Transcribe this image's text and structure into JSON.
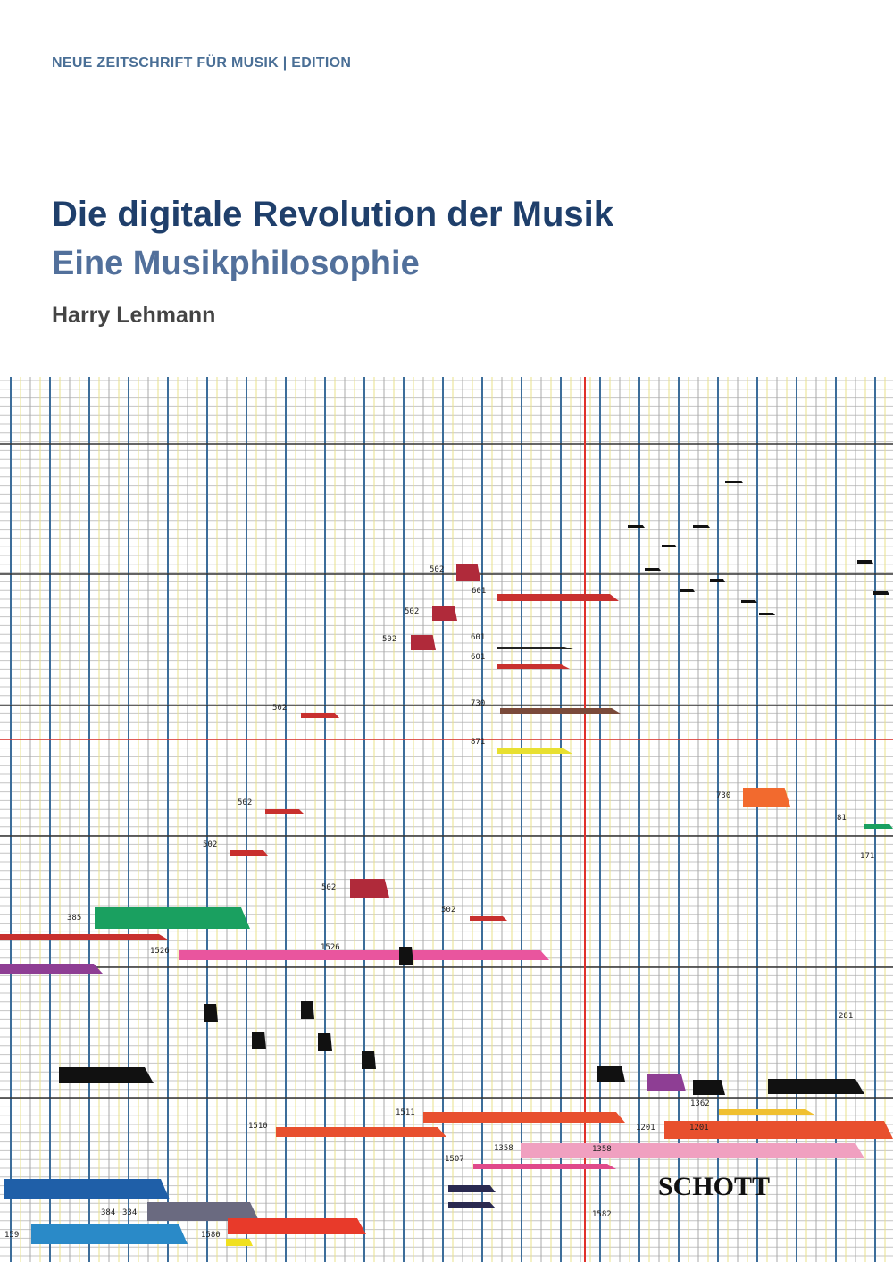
{
  "header": {
    "series": "NEUE ZEITSCHRIFT FÜR MUSIK | EDITION",
    "title": "Die digitale Revolution der Musik",
    "subtitle": "Eine Musikphilosophie",
    "author": "Harry Lehmann"
  },
  "cover_art": {
    "labels": [
      "502",
      "601",
      "502",
      "502",
      "601",
      "601",
      "502",
      "730",
      "871",
      "730",
      "502",
      "502",
      "81",
      "171",
      "502",
      "502",
      "385",
      "1526",
      "1526",
      "281",
      "1511",
      "1510",
      "1201",
      "1201",
      "1362",
      "1358",
      "1358",
      "1507",
      "1582",
      "384",
      "334",
      "159",
      "1580"
    ]
  },
  "publisher": "SCHOTT"
}
